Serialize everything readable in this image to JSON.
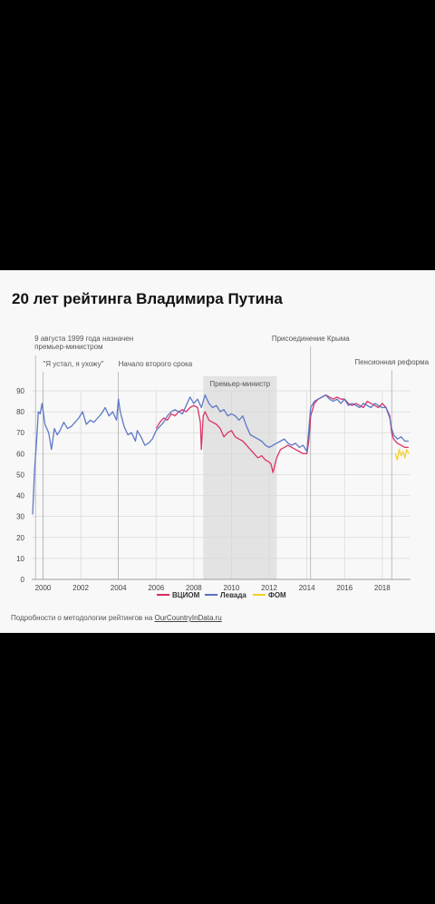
{
  "title": "20 лет рейтинга Владимира Путина",
  "footer": {
    "text": "Подробности о методологии рейтингов на ",
    "link": "OurCountryInData.ru"
  },
  "colors": {
    "vciom": "#d92a5c",
    "levada": "#5572c4",
    "fom": "#f2d023",
    "grid": "#d7d7d7",
    "shade": "#e3e3e3"
  },
  "chart_data": {
    "type": "line",
    "title": "20 лет рейтинга Владимира Путина",
    "xlabel": "",
    "ylabel": "",
    "xlim": [
      1999.4,
      2019.5
    ],
    "ylim": [
      0,
      90
    ],
    "x_ticks": [
      "2000",
      "2002",
      "2004",
      "2006",
      "2008",
      "2010",
      "2012",
      "2014",
      "2016",
      "2018"
    ],
    "y_ticks": [
      "0",
      "10",
      "20",
      "30",
      "40",
      "50",
      "60",
      "70",
      "80",
      "90"
    ],
    "grid": true,
    "legend": "bottom-center",
    "shaded_region": {
      "x": [
        2008.5,
        2012.4
      ],
      "label": "Премьер-министр"
    },
    "annotations": [
      {
        "x": 1999.6,
        "lines": [
          "9 августа 1999 года назначен",
          "премьер-министром"
        ]
      },
      {
        "x": 2000.0,
        "lines": [
          "\"Я устал, я ухожу\""
        ]
      },
      {
        "x": 2004.0,
        "lines": [
          "Начало второго срока"
        ]
      },
      {
        "x": 2014.2,
        "lines": [
          "Присоединение Крыма"
        ]
      },
      {
        "x": 2018.5,
        "lines": [
          "Пенсионная реформа"
        ]
      }
    ],
    "series": [
      {
        "name": "ВЦИОМ",
        "color": "#d92a5c",
        "x": [
          2006.0,
          2006.2,
          2006.4,
          2006.6,
          2006.8,
          2007.0,
          2007.2,
          2007.4,
          2007.6,
          2007.8,
          2008.0,
          2008.2,
          2008.35,
          2008.4,
          2008.5,
          2008.6,
          2008.8,
          2009.0,
          2009.2,
          2009.4,
          2009.6,
          2009.8,
          2010.0,
          2010.2,
          2010.4,
          2010.6,
          2010.8,
          2011.0,
          2011.2,
          2011.4,
          2011.6,
          2011.8,
          2012.0,
          2012.1,
          2012.2,
          2012.4,
          2012.6,
          2012.8,
          2013.0,
          2013.2,
          2013.4,
          2013.6,
          2013.8,
          2014.0,
          2014.1,
          2014.2,
          2014.4,
          2014.6,
          2014.8,
          2015.0,
          2015.2,
          2015.4,
          2015.6,
          2015.8,
          2016.0,
          2016.2,
          2016.4,
          2016.6,
          2016.8,
          2017.0,
          2017.2,
          2017.4,
          2017.6,
          2017.8,
          2018.0,
          2018.2,
          2018.4,
          2018.5,
          2018.6,
          2018.8,
          2019.0,
          2019.2,
          2019.4
        ],
        "y": [
          72,
          75,
          77,
          76,
          79,
          78,
          80,
          81,
          80,
          82,
          83,
          82,
          75,
          62,
          78,
          80,
          76,
          75,
          74,
          72,
          68,
          70,
          71,
          68,
          67,
          66,
          64,
          62,
          60,
          58,
          59,
          57,
          56,
          55,
          51,
          58,
          62,
          63,
          64,
          63,
          62,
          61,
          60,
          60,
          66,
          78,
          84,
          86,
          87,
          88,
          87,
          86,
          87,
          86,
          86,
          84,
          83,
          84,
          83,
          82,
          85,
          84,
          83,
          82,
          84,
          82,
          78,
          70,
          67,
          65,
          64,
          63,
          63
        ]
      },
      {
        "name": "Левада",
        "color": "#5572c4",
        "x": [
          1999.45,
          1999.55,
          1999.65,
          1999.75,
          1999.85,
          1999.95,
          2000.1,
          2000.3,
          2000.45,
          2000.6,
          2000.75,
          2000.9,
          2001.1,
          2001.3,
          2001.5,
          2001.7,
          2001.9,
          2002.1,
          2002.3,
          2002.5,
          2002.7,
          2002.9,
          2003.1,
          2003.3,
          2003.5,
          2003.7,
          2003.9,
          2004.0,
          2004.1,
          2004.3,
          2004.5,
          2004.7,
          2004.9,
          2005.0,
          2005.2,
          2005.4,
          2005.6,
          2005.8,
          2006.0,
          2006.2,
          2006.4,
          2006.6,
          2006.8,
          2007.0,
          2007.2,
          2007.4,
          2007.6,
          2007.8,
          2008.0,
          2008.2,
          2008.4,
          2008.6,
          2008.8,
          2009.0,
          2009.2,
          2009.4,
          2009.6,
          2009.8,
          2010.0,
          2010.2,
          2010.4,
          2010.6,
          2010.8,
          2011.0,
          2011.2,
          2011.4,
          2011.6,
          2011.8,
          2012.0,
          2012.2,
          2012.4,
          2012.6,
          2012.8,
          2013.0,
          2013.2,
          2013.4,
          2013.6,
          2013.8,
          2014.0,
          2014.1,
          2014.2,
          2014.4,
          2014.6,
          2014.8,
          2015.0,
          2015.2,
          2015.4,
          2015.6,
          2015.8,
          2016.0,
          2016.2,
          2016.4,
          2016.6,
          2016.8,
          2017.0,
          2017.2,
          2017.4,
          2017.6,
          2017.8,
          2018.0,
          2018.2,
          2018.4,
          2018.5,
          2018.6,
          2018.8,
          2019.0,
          2019.2,
          2019.4
        ],
        "y": [
          31,
          52,
          65,
          80,
          79,
          84,
          74,
          70,
          62,
          72,
          69,
          71,
          75,
          72,
          73,
          75,
          77,
          80,
          74,
          76,
          75,
          77,
          79,
          82,
          78,
          80,
          76,
          86,
          80,
          73,
          69,
          70,
          66,
          71,
          68,
          64,
          65,
          67,
          71,
          73,
          75,
          78,
          80,
          81,
          80,
          79,
          83,
          87,
          84,
          86,
          82,
          88,
          84,
          82,
          83,
          80,
          81,
          78,
          79,
          78,
          76,
          78,
          73,
          69,
          68,
          67,
          66,
          64,
          63,
          64,
          65,
          66,
          67,
          65,
          64,
          65,
          63,
          64,
          61,
          71,
          82,
          85,
          86,
          87,
          88,
          86,
          85,
          86,
          84,
          86,
          83,
          84,
          83,
          82,
          84,
          83,
          82,
          84,
          83,
          82,
          82,
          77,
          72,
          69,
          67,
          68,
          66,
          66
        ]
      },
      {
        "name": "ФОМ",
        "color": "#f2d023",
        "x": [
          2018.7,
          2018.8,
          2018.9,
          2019.0,
          2019.1,
          2019.2,
          2019.3,
          2019.4
        ],
        "y": [
          60,
          57,
          62,
          59,
          61,
          58,
          62,
          60
        ]
      }
    ]
  }
}
